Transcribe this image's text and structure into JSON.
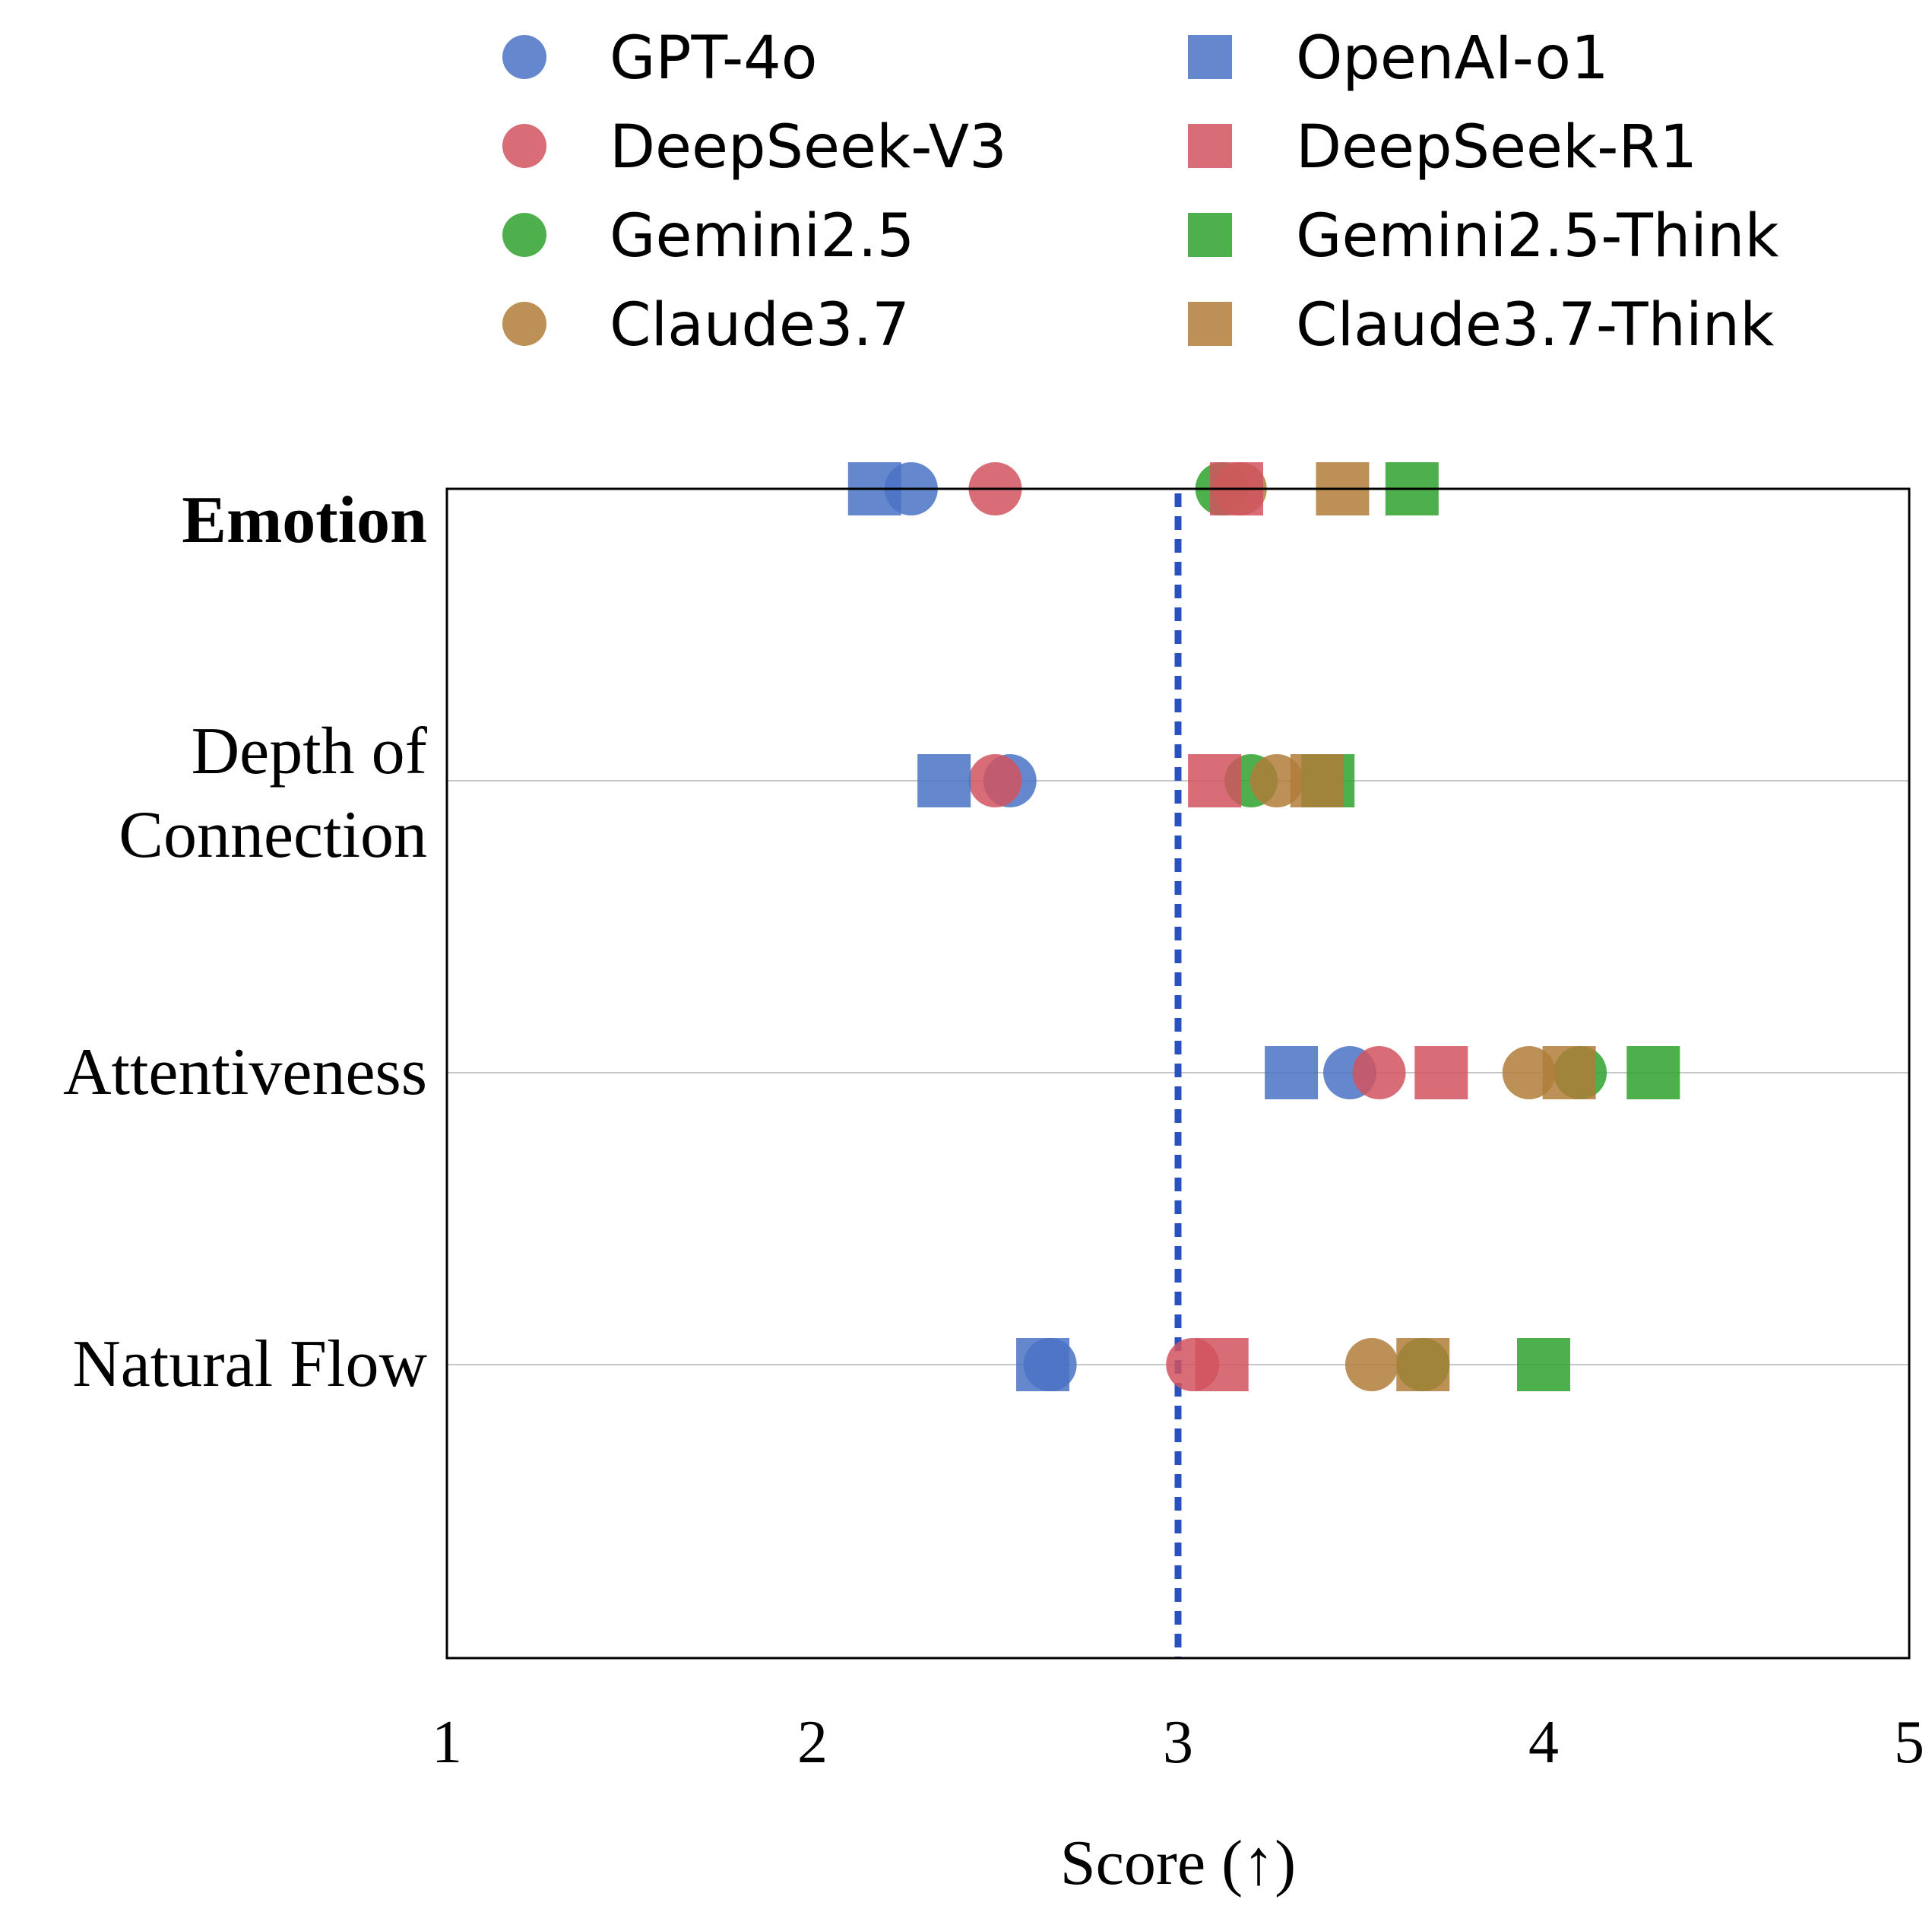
{
  "chart_data": {
    "type": "scatter",
    "xlabel": "Score (↑)",
    "xlim": [
      1,
      5
    ],
    "xticks": [
      "1",
      "2",
      "3",
      "4",
      "5"
    ],
    "reference_line": {
      "x": 3,
      "style": "dotted",
      "color": "#2a52be"
    },
    "categories": [
      "Emotion",
      "Depth of Connection",
      "Attentiveness",
      "Natural Flow"
    ],
    "category_lines": [
      [
        "Emotion"
      ],
      [
        "Depth of",
        "Connection"
      ],
      [
        "Attentiveness"
      ],
      [
        "Natural Flow"
      ]
    ],
    "bold_category": "Emotion",
    "grid": "horizontal",
    "legend_position": "top",
    "series": [
      {
        "name": "GPT-4o",
        "marker": "circle",
        "color": "#4a72c4",
        "values": [
          2.27,
          2.54,
          3.47,
          2.65
        ]
      },
      {
        "name": "DeepSeek-V3",
        "marker": "circle",
        "color": "#d1545f",
        "values": [
          2.5,
          2.5,
          3.55,
          3.04
        ]
      },
      {
        "name": "Gemini2.5",
        "marker": "circle",
        "color": "#2ea22e",
        "values": [
          3.12,
          3.2,
          4.1,
          3.67
        ]
      },
      {
        "name": "Claude3.7",
        "marker": "circle",
        "color": "#b07d3a",
        "values": [
          3.17,
          3.27,
          3.96,
          3.53
        ]
      },
      {
        "name": "OpenAI-o1",
        "marker": "square",
        "color": "#4a72c4",
        "values": [
          2.17,
          2.36,
          3.31,
          2.63
        ]
      },
      {
        "name": "DeepSeek-R1",
        "marker": "square",
        "color": "#d1545f",
        "values": [
          3.16,
          3.1,
          3.72,
          3.12
        ]
      },
      {
        "name": "Gemini2.5-Think",
        "marker": "square",
        "color": "#2ea22e",
        "values": [
          3.64,
          3.41,
          4.3,
          4.0
        ]
      },
      {
        "name": "Claude3.7-Think",
        "marker": "square",
        "color": "#b07d3a",
        "values": [
          3.45,
          3.38,
          4.07,
          3.67
        ]
      }
    ]
  }
}
